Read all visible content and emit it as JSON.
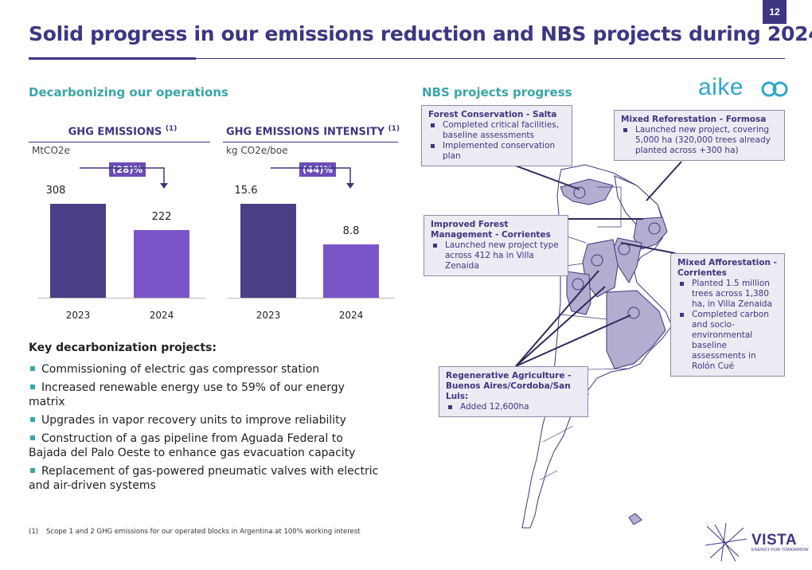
{
  "page_number": "12",
  "title": "Solid progress in our emissions reduction and NBS projects during 2024",
  "left_section": {
    "heading": "Decarbonizing our operations",
    "charts": [
      {
        "title": "GHG EMISSIONS",
        "sup": "(1)",
        "unit": "MtCO2e",
        "change": "(28)%",
        "categories": [
          "2023",
          "2024"
        ],
        "values": [
          308,
          222
        ],
        "labels": [
          "308",
          "222"
        ]
      },
      {
        "title": "GHG EMISSIONS INTENSITY",
        "sup": "(1)",
        "unit": "kg CO2e/boe",
        "change": "(44)%",
        "categories": [
          "2023",
          "2024"
        ],
        "values": [
          15.6,
          8.8
        ],
        "labels": [
          "15.6",
          "8.8"
        ]
      }
    ],
    "key_projects_heading": "Key decarbonization projects:",
    "key_projects": [
      "Commissioning of electric gas compressor station",
      "Increased renewable energy use to 59% of our energy matrix",
      "Upgrades in vapor recovery units to improve reliability",
      "Construction of a gas pipeline from Aguada Federal to Bajada del Palo Oeste to enhance gas evacuation capacity",
      "Replacement of gas-powered pneumatic valves with electric and air-driven systems"
    ]
  },
  "right_section": {
    "heading": "NBS projects progress",
    "callouts": {
      "forest_salta": {
        "title": "Forest Conservation - Salta",
        "items": [
          "Completed critical facilities, baseline assessments",
          "Implemented conservation plan"
        ]
      },
      "mixed_reforestation": {
        "title": "Mixed Reforestation - Formosa",
        "items": [
          "Launched new project, covering 5,000 ha (320,000 trees already planted across +300 ha)"
        ]
      },
      "improved_forest": {
        "title": "Improved Forest Management - Corrientes",
        "items": [
          "Launched new project type across 412 ha in Villa Zenaida"
        ]
      },
      "mixed_afforestation": {
        "title": "Mixed Afforestation - Corrientes",
        "items": [
          "Planted 1.5 million trees across 1,380 ha, in Villa Zenaida",
          "Completed carbon and socio-environmental baseline assessments in Rolón Cué"
        ]
      },
      "regenerative": {
        "title": "Regenerative Agriculture - Buenos Aires/Cordoba/San Luis:",
        "items": [
          "Added 12,600ha"
        ]
      }
    }
  },
  "footnote": {
    "mark": "(1)",
    "text": "Scope 1 and 2 GHG emissions for our operated blocks in Argentina at 100% working interest"
  },
  "logos": {
    "aike": "aike",
    "vista": "VISTA",
    "vista_tagline": "ENERGY FOR TOMORROW"
  },
  "colors": {
    "primary": "#3d3680",
    "accent_teal": "#3ba5a6",
    "bar_2023": "#4a3f85",
    "bar_2024": "#7a55c8",
    "map_fill": "#b3aed0"
  }
}
